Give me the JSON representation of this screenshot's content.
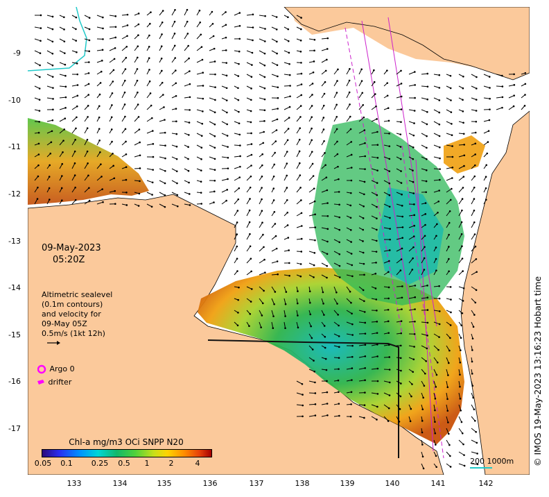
{
  "map": {
    "timestamp_date": "09-May-2023",
    "timestamp_time": "05:20Z",
    "altimetry_legend": [
      "Altimetric sealevel",
      "(0.1m contours)",
      "and velocity for",
      "09-May 05Z",
      "0.5m/s (1kt 12h)"
    ],
    "argo_label": "Argo 0",
    "drifter_label": "drifter",
    "colorbar_title": "Chl-a mg/m3 OCi SNPP N20",
    "colorbar_ticks": [
      "0.05",
      "0.1",
      "0.25",
      "0.5",
      "1",
      "2",
      "4"
    ],
    "scale_label": "200  1000m",
    "copyright": "© IMOS 19-May-2023 13:16:23 Hobart time",
    "lat_ticks": [
      "-9",
      "-10",
      "-11",
      "-12",
      "-13",
      "-14",
      "-15",
      "-16",
      "-17"
    ],
    "lon_ticks": [
      "133",
      "134",
      "135",
      "136",
      "137",
      "138",
      "139",
      "140",
      "141",
      "142"
    ],
    "colors": {
      "land": "#fbc99b",
      "ocean_no_data": "#ffffff",
      "chl_high": "#c9520a",
      "chl_mid": "#2db34a",
      "chl_low": "#0fb8b8",
      "contour": "#20c9c9",
      "satellite_track": "#cc22cc",
      "argo": "#ff00ff"
    }
  }
}
